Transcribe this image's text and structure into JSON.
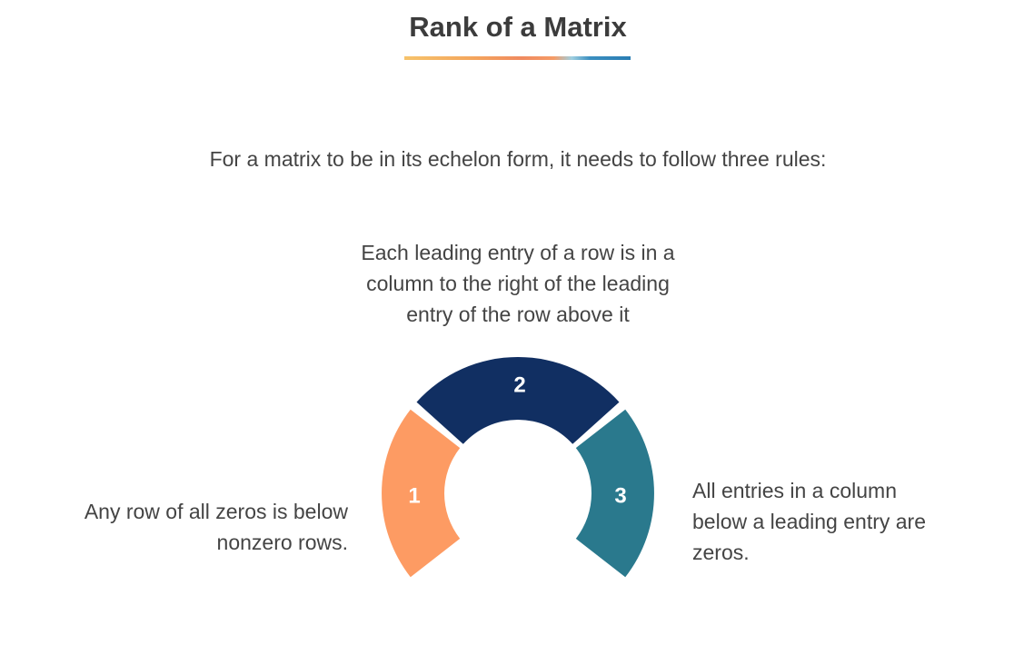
{
  "title": "Rank of a Matrix",
  "intro": "For a matrix to be in its echelon form, it needs to follow three rules:",
  "rules": [
    {
      "number": "1",
      "lines": [
        "Any row of all zeros is below",
        "nonzero rows."
      ],
      "color": "#fd9b63"
    },
    {
      "number": "2",
      "lines": [
        "Each leading entry of a row is in a",
        "column to the right of the leading",
        "entry of the row above it"
      ],
      "color": "#112f62"
    },
    {
      "number": "3",
      "lines": [
        "All entries in a column",
        "below a leading entry are",
        "zeros."
      ],
      "color": "#2a798d"
    }
  ]
}
